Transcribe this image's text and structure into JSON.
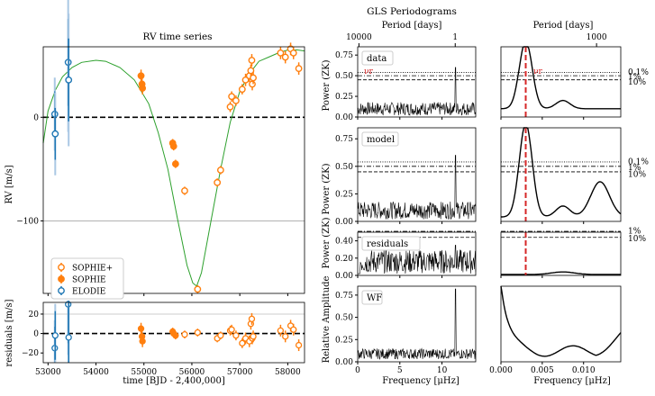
{
  "figure": {
    "rv_title": "RV time series",
    "gls_title": "GLS Periodograms",
    "rv_ylabel": "RV [m/s]",
    "res_ylabel": "residuals [m/s]",
    "rv_xlabel": "time [BJD - 2,400,000]",
    "period_label": "Period [days]",
    "freq_label": "Frequency [μHz]",
    "power_label": "Power (ZK)",
    "relamp_label": "Relative Amplitude",
    "nu_r_label": "νr"
  },
  "colors": {
    "sophie_plus": "#ff7f0e",
    "sophie": "#ff7f0e",
    "elodie": "#1f77b4",
    "model": "#2ca02c",
    "marker": "#d62728"
  },
  "chart_data": [
    {
      "type": "scatter",
      "name": "RV time series",
      "title": "RV time series",
      "xlabel": "time [BJD - 2,400,000]",
      "ylabel": "RV [m/s]",
      "xlim": [
        52900,
        58350
      ],
      "ylim": [
        -170,
        68
      ],
      "xticks": [
        53000,
        54000,
        55000,
        56000,
        57000,
        58000
      ],
      "yticks": [
        -100,
        0
      ],
      "legend": [
        "SOPHIE+",
        "SOPHIE",
        "ELODIE"
      ],
      "series": [
        {
          "name": "SOPHIE+",
          "points": [
            [
              55850,
              -71
            ],
            [
              56120,
              -166
            ],
            [
              56530,
              -63
            ],
            [
              56600,
              -51
            ],
            [
              56800,
              10
            ],
            [
              56830,
              20
            ],
            [
              56920,
              16
            ],
            [
              57050,
              27
            ],
            [
              57120,
              36
            ],
            [
              57200,
              40
            ],
            [
              57230,
              45
            ],
            [
              57250,
              55
            ],
            [
              57260,
              32
            ],
            [
              57280,
              38
            ],
            [
              57850,
              62
            ],
            [
              57950,
              58
            ],
            [
              58060,
              66
            ],
            [
              58120,
              62
            ],
            [
              58230,
              47
            ]
          ],
          "err": [
            4,
            4,
            4,
            4,
            5,
            5,
            5,
            5,
            6,
            6,
            6,
            6,
            6,
            6,
            6,
            6,
            6,
            6,
            6
          ]
        },
        {
          "name": "SOPHIE",
          "points": [
            [
              54940,
              40
            ],
            [
              54960,
              32
            ],
            [
              54970,
              28
            ],
            [
              55600,
              -25
            ],
            [
              55620,
              -28
            ],
            [
              55660,
              -45
            ]
          ],
          "err": [
            6,
            6,
            6,
            4,
            4,
            4
          ]
        },
        {
          "name": "ELODIE",
          "points": [
            [
              53140,
              3
            ],
            [
              53150,
              -16
            ],
            [
              53420,
              53
            ],
            [
              53430,
              36
            ]
          ],
          "err": [
            22,
            25,
            42,
            40
          ]
        },
        {
          "name": "model",
          "line": true
        }
      ],
      "model_points": [
        [
          52900,
          -25
        ],
        [
          53000,
          6
        ],
        [
          53150,
          26
        ],
        [
          53300,
          39
        ],
        [
          53500,
          48
        ],
        [
          53700,
          53
        ],
        [
          54000,
          55
        ],
        [
          54200,
          54
        ],
        [
          54500,
          48
        ],
        [
          54800,
          36
        ],
        [
          55100,
          13
        ],
        [
          55300,
          -15
        ],
        [
          55500,
          -50
        ],
        [
          55700,
          -98
        ],
        [
          55900,
          -143
        ],
        [
          56020,
          -160
        ],
        [
          56100,
          -163
        ],
        [
          56200,
          -150
        ],
        [
          56400,
          -100
        ],
        [
          56600,
          -50
        ],
        [
          56800,
          -5
        ],
        [
          57000,
          25
        ],
        [
          57200,
          42
        ],
        [
          57400,
          54
        ],
        [
          57600,
          58
        ],
        [
          57800,
          62
        ],
        [
          58000,
          65
        ],
        [
          58200,
          65
        ],
        [
          58350,
          64
        ]
      ]
    },
    {
      "type": "scatter",
      "name": "residuals",
      "ylabel": "residuals [m/s]",
      "xlabel": "time [BJD - 2,400,000]",
      "ylim": [
        -30,
        32
      ],
      "yticks": [
        -20,
        0,
        20
      ],
      "values": [
        [
          53140,
          -15
        ],
        [
          53150,
          -2
        ],
        [
          53420,
          30
        ],
        [
          53430,
          -4
        ],
        [
          54940,
          5
        ],
        [
          54960,
          -3
        ],
        [
          54970,
          -8
        ],
        [
          55600,
          2
        ],
        [
          55620,
          0
        ],
        [
          55660,
          -2
        ],
        [
          55850,
          -1
        ],
        [
          56120,
          1
        ],
        [
          56530,
          -5
        ],
        [
          56600,
          -2
        ],
        [
          56800,
          3
        ],
        [
          56830,
          4
        ],
        [
          56920,
          -2
        ],
        [
          57050,
          -10
        ],
        [
          57120,
          -5
        ],
        [
          57200,
          -8
        ],
        [
          57230,
          10
        ],
        [
          57250,
          15
        ],
        [
          57260,
          -5
        ],
        [
          57280,
          -3
        ],
        [
          57850,
          3
        ],
        [
          57950,
          -3
        ],
        [
          58060,
          8
        ],
        [
          58120,
          4
        ],
        [
          58230,
          -12
        ]
      ],
      "err": [
        22,
        25,
        42,
        40,
        6,
        6,
        6,
        4,
        4,
        4,
        4,
        4,
        4,
        4,
        5,
        5,
        5,
        5,
        6,
        6,
        6,
        6,
        6,
        6,
        6,
        6,
        6,
        6,
        6
      ]
    },
    {
      "type": "line",
      "name": "GLS periodograms",
      "xlabel": "Frequency [μHz]",
      "ylabel": "Power (ZK)",
      "left_xlim": [
        0,
        14
      ],
      "left_xticks": [
        0,
        5,
        10
      ],
      "right_xlim": [
        0.0,
        0.0145
      ],
      "right_xticks": [
        0.0,
        0.005,
        0.01
      ],
      "right_xticklabels": [
        "0.000",
        "0.005",
        "0.010"
      ],
      "period_ticks_top_left": [
        "10000",
        "1"
      ],
      "period_ticks_top_right": [
        "1000"
      ],
      "panels": [
        {
          "name": "data",
          "ylim": [
            0,
            0.85
          ],
          "yticks": [
            0.0,
            0.25,
            0.5,
            0.75
          ],
          "fap_levels": {
            "0.1%": 0.54,
            "1%": 0.5,
            "10%": 0.45
          },
          "peak_freq": 0.003,
          "peak_power": 0.82
        },
        {
          "name": "model",
          "ylim": [
            0,
            0.85
          ],
          "yticks": [
            0.0,
            0.25,
            0.5,
            0.75
          ],
          "fap_levels": {
            "0.1%": 0.54,
            "1%": 0.5,
            "10%": 0.45
          },
          "peak_freq": 0.003,
          "peak_power": 0.85
        },
        {
          "name": "residuals",
          "ylim": [
            0,
            0.5
          ],
          "yticks": [
            0.0,
            0.2,
            0.4
          ],
          "fap_levels": {
            "1%": 0.51,
            "10%": 0.44
          },
          "peak_power": 0.05
        },
        {
          "name": "WF",
          "ylim": [
            0,
            0.85
          ],
          "yticks": [
            0.0,
            0.25,
            0.5,
            0.75
          ],
          "peak_freq_left": 11.6,
          "peak_power_left": 0.82
        }
      ],
      "fap_labels": [
        "0.1%",
        "1%",
        "10%"
      ]
    }
  ]
}
